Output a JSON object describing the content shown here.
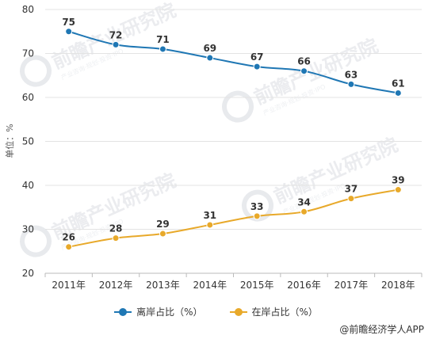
{
  "chart_data": {
    "type": "line",
    "categories": [
      "2011年",
      "2012年",
      "2013年",
      "2014年",
      "2015年",
      "2016年",
      "2017年",
      "2018年"
    ],
    "series": [
      {
        "name": "离岸占比（%）",
        "color": "#1f77b4",
        "values": [
          75,
          72,
          71,
          69,
          67,
          66,
          63,
          61
        ]
      },
      {
        "name": "在岸占比（%）",
        "color": "#e8a92a",
        "values": [
          26,
          28,
          29,
          31,
          33,
          34,
          37,
          39
        ]
      }
    ],
    "ylabel": "单位：%",
    "ylim": [
      20,
      80
    ],
    "yticks": [
      20,
      30,
      40,
      50,
      60,
      70,
      80
    ],
    "grid": true,
    "legend": "bottom"
  },
  "watermark": {
    "brand": "前瞻产业研究院",
    "tagline": "产业咨询·规划·投资·IPO",
    "eng": "QIANZHAN"
  },
  "source": "@前瞻经济学人APP"
}
